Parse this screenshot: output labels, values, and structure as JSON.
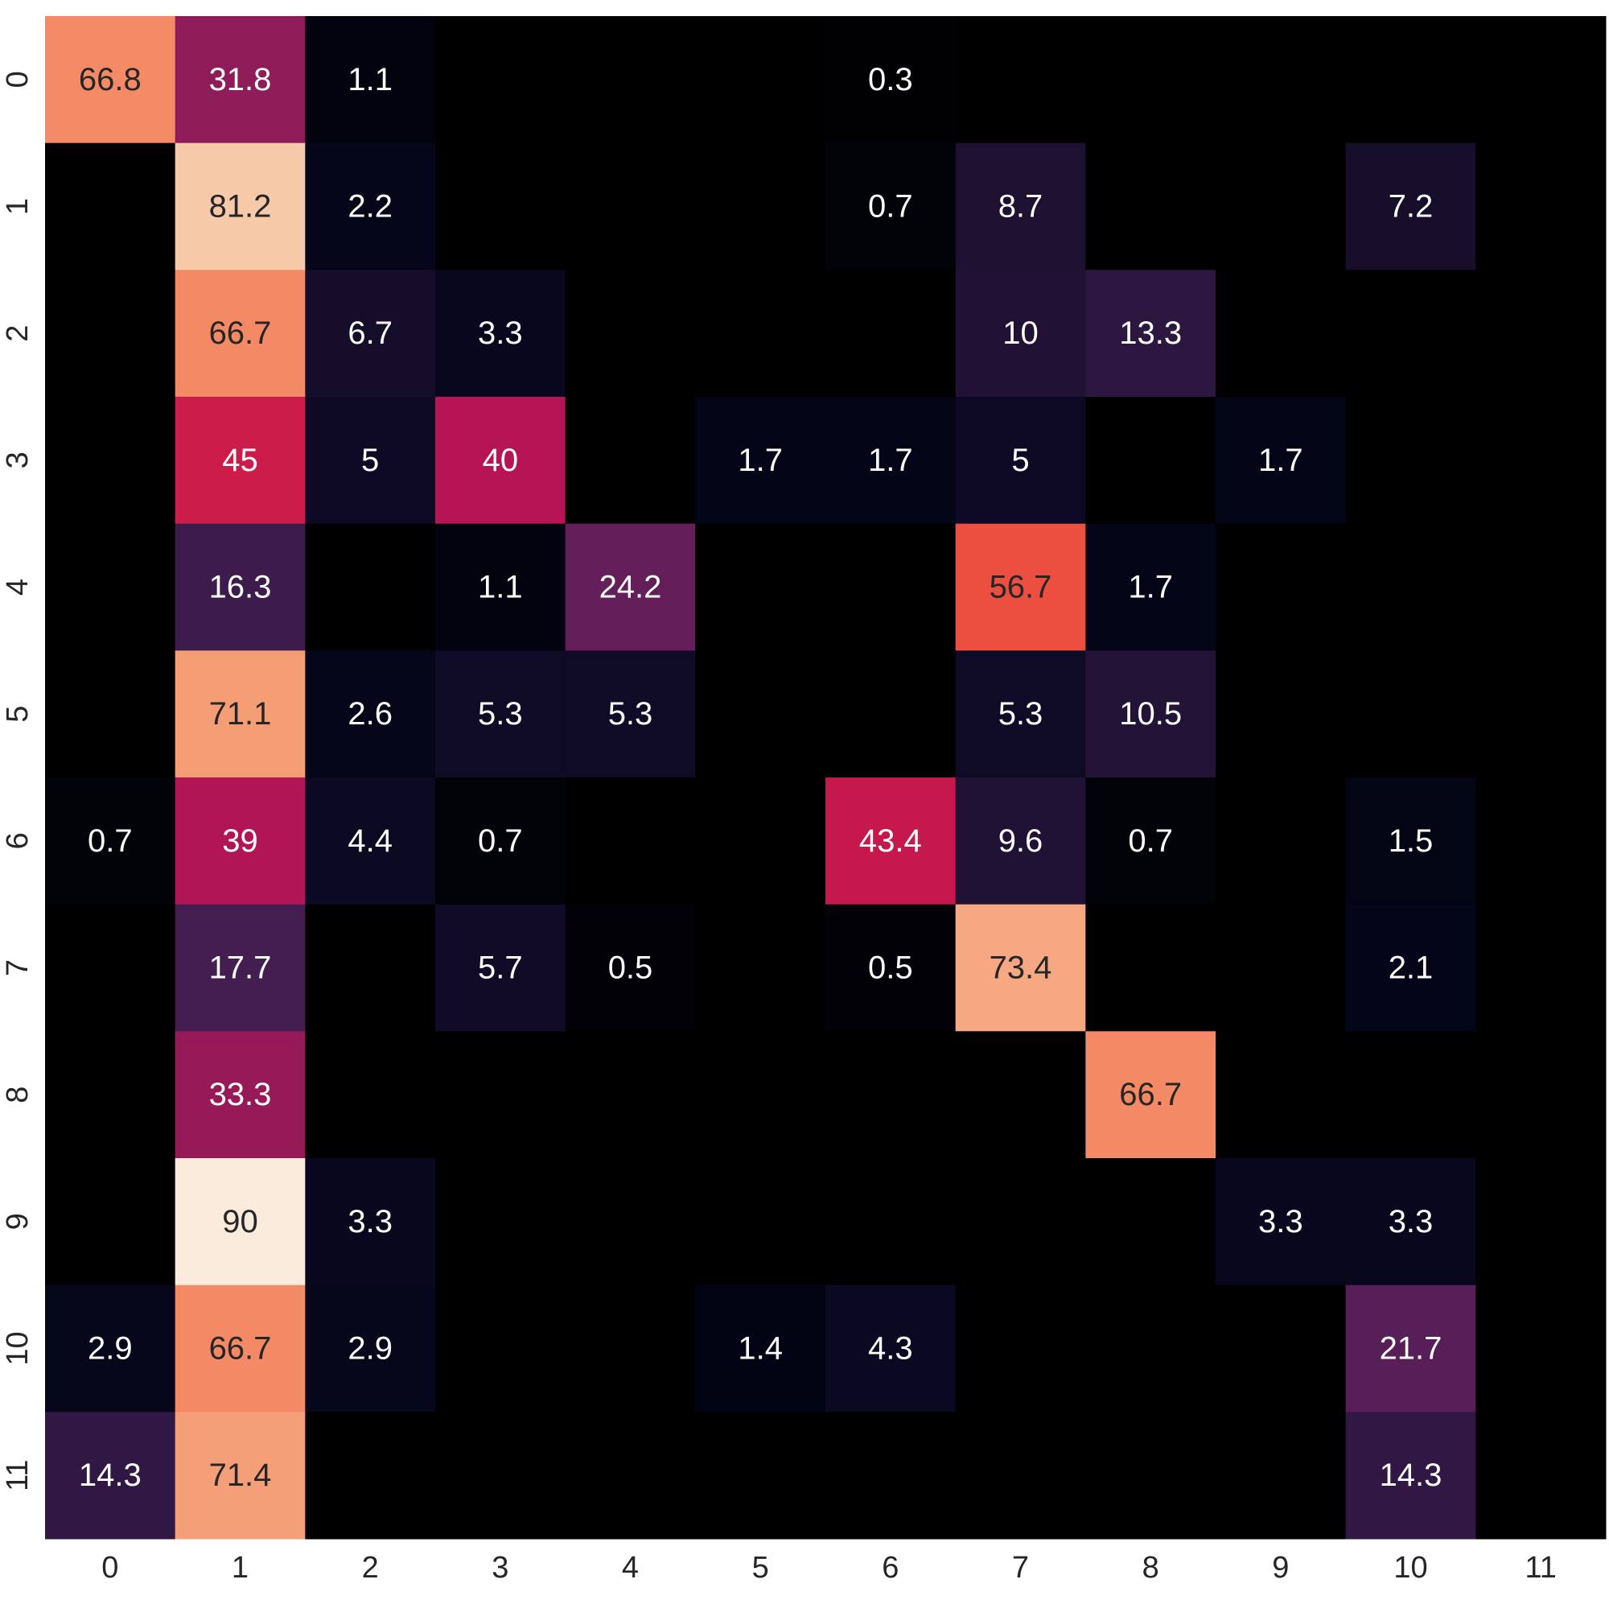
{
  "chart_data": {
    "type": "heatmap",
    "title": "",
    "xlabel": "",
    "ylabel": "",
    "x_categories": [
      "0",
      "1",
      "2",
      "3",
      "4",
      "5",
      "6",
      "7",
      "8",
      "9",
      "10",
      "11"
    ],
    "y_categories": [
      "0",
      "1",
      "2",
      "3",
      "4",
      "5",
      "6",
      "7",
      "8",
      "9",
      "10",
      "11"
    ],
    "colormap": "rocket",
    "value_range": [
      0,
      90
    ],
    "colorbar": false,
    "grid": false,
    "values": [
      [
        66.8,
        31.8,
        1.1,
        null,
        null,
        null,
        0.3,
        null,
        null,
        null,
        null,
        null
      ],
      [
        null,
        81.2,
        2.2,
        null,
        null,
        null,
        0.7,
        8.7,
        null,
        null,
        7.2,
        null
      ],
      [
        null,
        66.7,
        6.7,
        3.3,
        null,
        null,
        null,
        10,
        13.3,
        null,
        null,
        null
      ],
      [
        null,
        45,
        5,
        40,
        null,
        1.7,
        1.7,
        5,
        null,
        1.7,
        null,
        null
      ],
      [
        null,
        16.3,
        null,
        1.1,
        24.2,
        null,
        null,
        56.7,
        1.7,
        null,
        null,
        null
      ],
      [
        null,
        71.1,
        2.6,
        5.3,
        5.3,
        null,
        null,
        5.3,
        10.5,
        null,
        null,
        null
      ],
      [
        0.7,
        39,
        4.4,
        0.7,
        null,
        null,
        43.4,
        9.6,
        0.7,
        null,
        1.5,
        null
      ],
      [
        null,
        17.7,
        null,
        5.7,
        0.5,
        null,
        0.5,
        73.4,
        null,
        null,
        2.1,
        null
      ],
      [
        null,
        33.3,
        null,
        null,
        null,
        null,
        null,
        null,
        66.7,
        null,
        null,
        null
      ],
      [
        null,
        90,
        3.3,
        null,
        null,
        null,
        null,
        null,
        null,
        3.3,
        3.3,
        null
      ],
      [
        2.9,
        66.7,
        2.9,
        null,
        null,
        1.4,
        4.3,
        null,
        null,
        null,
        21.7,
        null
      ],
      [
        14.3,
        71.4,
        null,
        null,
        null,
        null,
        null,
        null,
        null,
        null,
        14.3,
        null
      ]
    ]
  }
}
